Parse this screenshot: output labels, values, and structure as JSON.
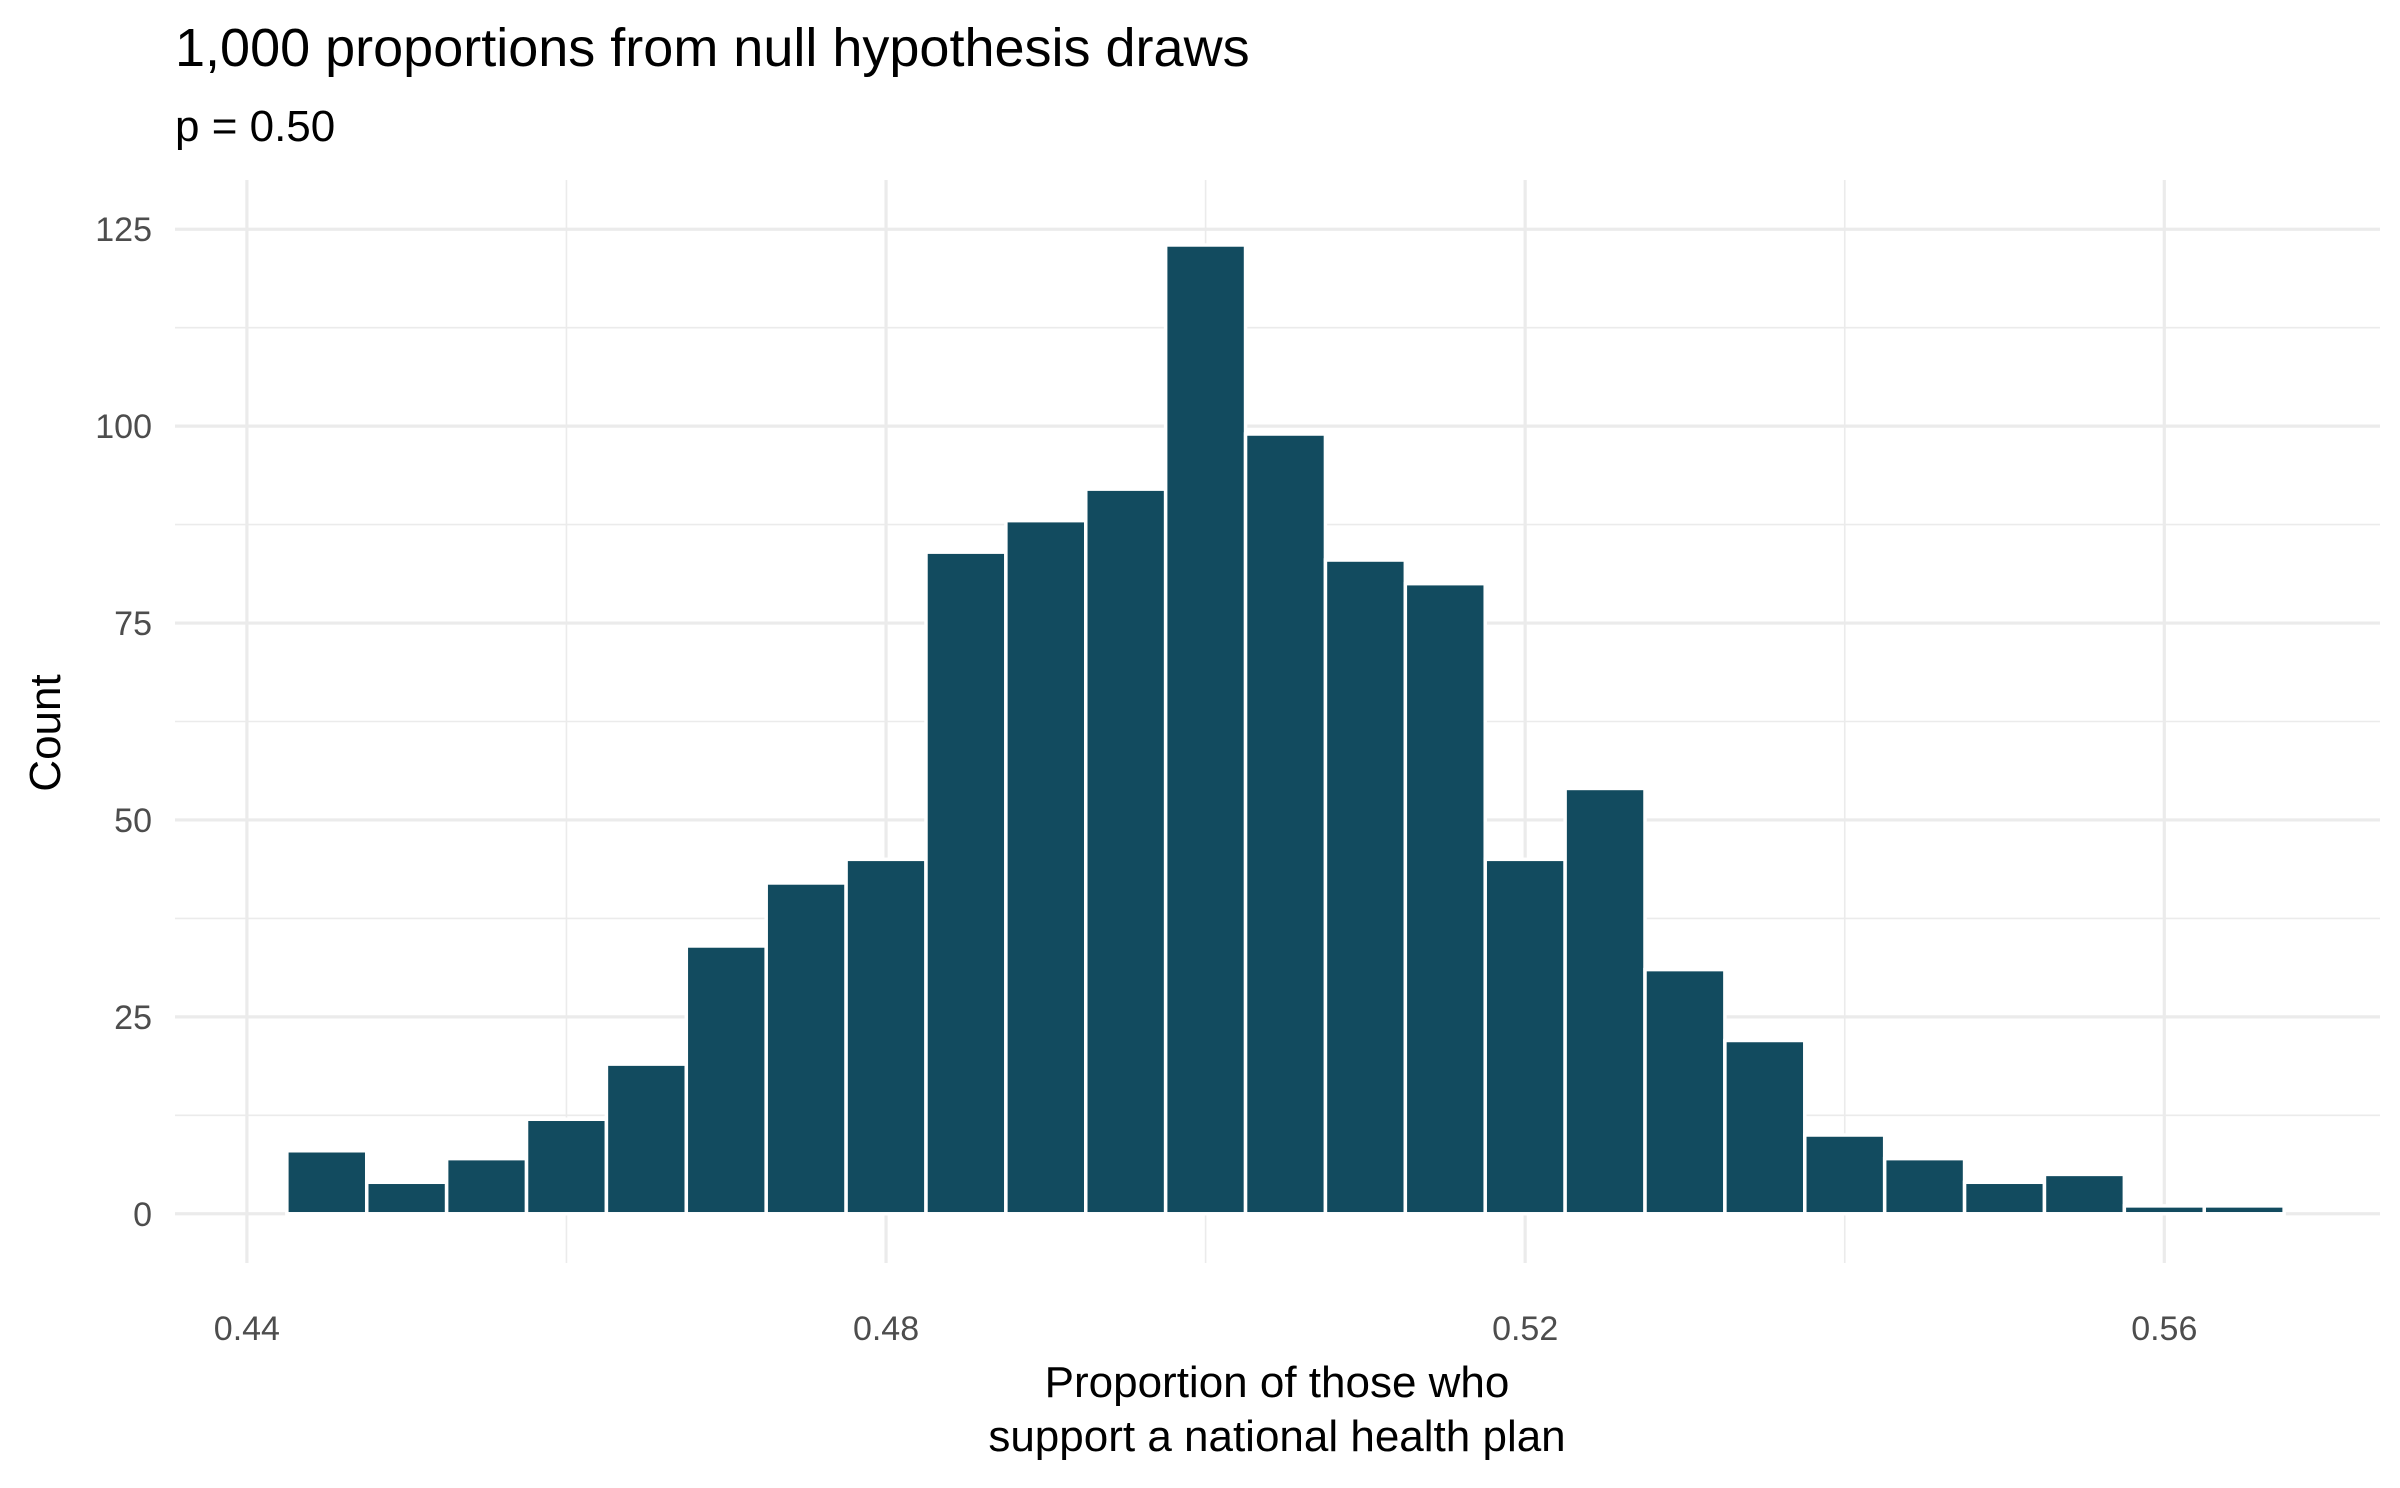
{
  "chart_data": {
    "type": "bar",
    "title": "1,000 proportions from null hypothesis draws",
    "subtitle": "p = 0.50",
    "xlabel_lines": [
      "Proportion of those who",
      "support a national health plan"
    ],
    "ylabel": "Count",
    "bar_color": "#124B5F",
    "bar_outline": "#FFFFFF",
    "grid": true,
    "grid_color": "#EBEBEB",
    "xlim": [
      0.4355,
      0.5735
    ],
    "ylim": [
      0,
      125
    ],
    "x_ticks": [
      0.44,
      0.48,
      0.52,
      0.56
    ],
    "x_tick_labels": [
      "0.44",
      "0.48",
      "0.52",
      "0.56"
    ],
    "y_ticks": [
      0,
      25,
      50,
      75,
      100,
      125
    ],
    "y_tick_labels": [
      "0",
      "25",
      "50",
      "75",
      "100",
      "125"
    ],
    "bin_width": 0.005,
    "bins": [
      {
        "x_start": 0.4425,
        "x_end": 0.4475,
        "count": 8
      },
      {
        "x_start": 0.4475,
        "x_end": 0.4525,
        "count": 4
      },
      {
        "x_start": 0.4525,
        "x_end": 0.4575,
        "count": 7
      },
      {
        "x_start": 0.4575,
        "x_end": 0.4625,
        "count": 12
      },
      {
        "x_start": 0.4625,
        "x_end": 0.4675,
        "count": 19
      },
      {
        "x_start": 0.4675,
        "x_end": 0.4725,
        "count": 34
      },
      {
        "x_start": 0.4725,
        "x_end": 0.4775,
        "count": 42
      },
      {
        "x_start": 0.4775,
        "x_end": 0.4825,
        "count": 45
      },
      {
        "x_start": 0.4825,
        "x_end": 0.4875,
        "count": 84
      },
      {
        "x_start": 0.4875,
        "x_end": 0.4925,
        "count": 88
      },
      {
        "x_start": 0.4925,
        "x_end": 0.4975,
        "count": 92
      },
      {
        "x_start": 0.4975,
        "x_end": 0.5025,
        "count": 123
      },
      {
        "x_start": 0.5025,
        "x_end": 0.5075,
        "count": 99
      },
      {
        "x_start": 0.5075,
        "x_end": 0.5125,
        "count": 83
      },
      {
        "x_start": 0.5125,
        "x_end": 0.5175,
        "count": 80
      },
      {
        "x_start": 0.5175,
        "x_end": 0.5225,
        "count": 45
      },
      {
        "x_start": 0.5225,
        "x_end": 0.5275,
        "count": 54
      },
      {
        "x_start": 0.5275,
        "x_end": 0.5325,
        "count": 31
      },
      {
        "x_start": 0.5325,
        "x_end": 0.5375,
        "count": 22
      },
      {
        "x_start": 0.5375,
        "x_end": 0.5425,
        "count": 10
      },
      {
        "x_start": 0.5425,
        "x_end": 0.5475,
        "count": 7
      },
      {
        "x_start": 0.5475,
        "x_end": 0.5525,
        "count": 4
      },
      {
        "x_start": 0.5525,
        "x_end": 0.5575,
        "count": 5
      },
      {
        "x_start": 0.5575,
        "x_end": 0.5625,
        "count": 1
      },
      {
        "x_start": 0.5625,
        "x_end": 0.5675,
        "count": 1
      }
    ]
  }
}
